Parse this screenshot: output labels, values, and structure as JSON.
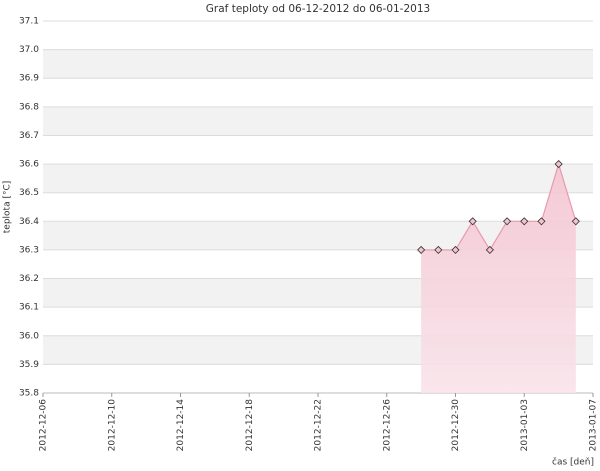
{
  "chart_data": {
    "type": "area",
    "title": "Graf teploty od 06-12-2012 do 06-01-2013",
    "y_label": "teplota [°C]",
    "x_label": "čas [deň]",
    "x": [
      "2012-12-28",
      "2012-12-29",
      "2012-12-30",
      "2012-12-31",
      "2013-01-01",
      "2013-01-02",
      "2013-01-03",
      "2013-01-04",
      "2013-01-05",
      "2013-01-06"
    ],
    "series": [
      {
        "name": "teplota",
        "color": "#e89aae",
        "values": [
          36.3,
          36.3,
          36.3,
          36.4,
          36.3,
          36.4,
          36.4,
          36.4,
          36.6,
          36.4
        ]
      }
    ],
    "xlim": [
      "2012-12-06",
      "2013-01-07"
    ],
    "xticks": [
      "2012-12-06",
      "2012-12-10",
      "2012-12-14",
      "2012-12-18",
      "2012-12-22",
      "2012-12-26",
      "2012-12-30",
      "2013-01-03",
      "2013-01-07"
    ],
    "ylim": [
      35.8,
      37.1
    ],
    "yticks": [
      35.8,
      35.9,
      {
        "value": 36,
        "label": "36.0"
      },
      36.1,
      36.2,
      36.3,
      36.4,
      36.5,
      36.6,
      36.7,
      36.8,
      36.9,
      {
        "value": 37,
        "label": "37.0"
      },
      37.1
    ],
    "grid": true
  }
}
